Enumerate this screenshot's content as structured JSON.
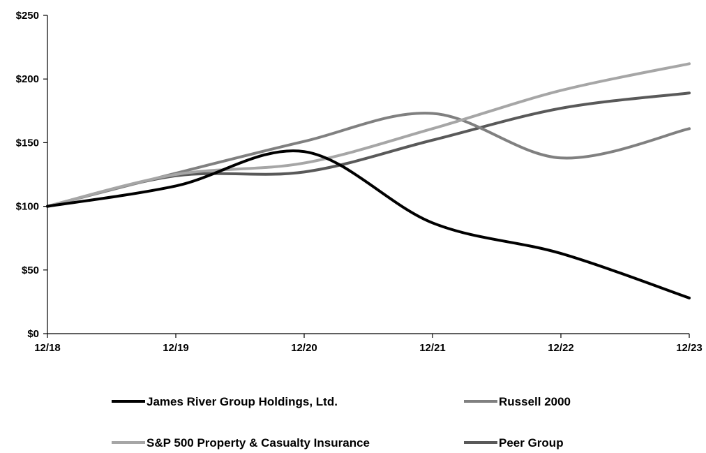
{
  "chart_data": {
    "type": "line",
    "title": "",
    "xlabel": "",
    "ylabel": "",
    "x": [
      "12/18",
      "12/19",
      "12/20",
      "12/21",
      "12/22",
      "12/23"
    ],
    "y_ticks": [
      "$0",
      "$50",
      "$100",
      "$150",
      "$200",
      "$250"
    ],
    "y_tick_values": [
      0,
      50,
      100,
      150,
      200,
      250
    ],
    "ylim": [
      0,
      250
    ],
    "grid": false,
    "legend_position": "bottom",
    "smooth": true,
    "series": [
      {
        "name": "James River Group Holdings, Ltd.",
        "color": "#000000",
        "values": [
          100,
          116,
          143,
          87,
          63,
          28
        ]
      },
      {
        "name": "Russell 2000",
        "color": "#808080",
        "values": [
          100,
          126,
          151,
          173,
          138,
          161
        ]
      },
      {
        "name": "S&P 500 Property & Casualty Insurance",
        "color": "#a6a6a6",
        "values": [
          100,
          125,
          134,
          161,
          191,
          212
        ]
      },
      {
        "name": "Peer Group",
        "color": "#595959",
        "values": [
          100,
          124,
          127,
          152,
          177,
          189
        ]
      }
    ]
  }
}
